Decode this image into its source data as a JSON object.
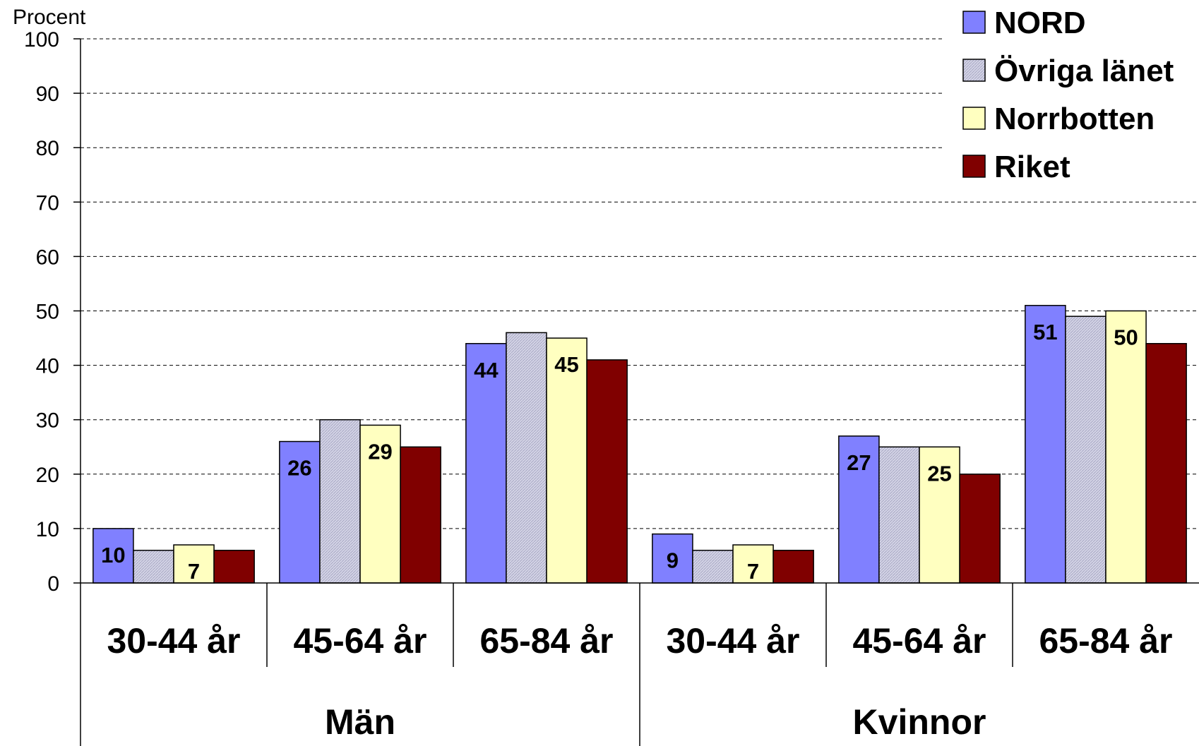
{
  "chart_data": {
    "type": "bar",
    "ylabel": "Procent",
    "ylim": [
      0,
      100
    ],
    "yticks": [
      0,
      10,
      20,
      30,
      40,
      50,
      60,
      70,
      80,
      90,
      100
    ],
    "grid": true,
    "legend_position": "top-right",
    "groups": [
      "Män",
      "Kvinnor"
    ],
    "categories": [
      "30-44 år",
      "45-64 år",
      "65-84 år",
      "30-44 år",
      "45-64 år",
      "65-84 år"
    ],
    "series": [
      {
        "name": "NORD",
        "color": "#8080ff",
        "values": [
          10,
          26,
          44,
          9,
          27,
          51
        ],
        "show_labels": true
      },
      {
        "name": "Övriga länet",
        "color": "#c6c6dc",
        "values": [
          6,
          30,
          46,
          6,
          25,
          49
        ],
        "show_labels": false
      },
      {
        "name": "Norrbotten",
        "color": "#ffffc0",
        "values": [
          7,
          29,
          45,
          7,
          25,
          50
        ],
        "show_labels": true
      },
      {
        "name": "Riket",
        "color": "#800000",
        "values": [
          6,
          25,
          41,
          6,
          20,
          44
        ],
        "show_labels": false
      }
    ]
  }
}
